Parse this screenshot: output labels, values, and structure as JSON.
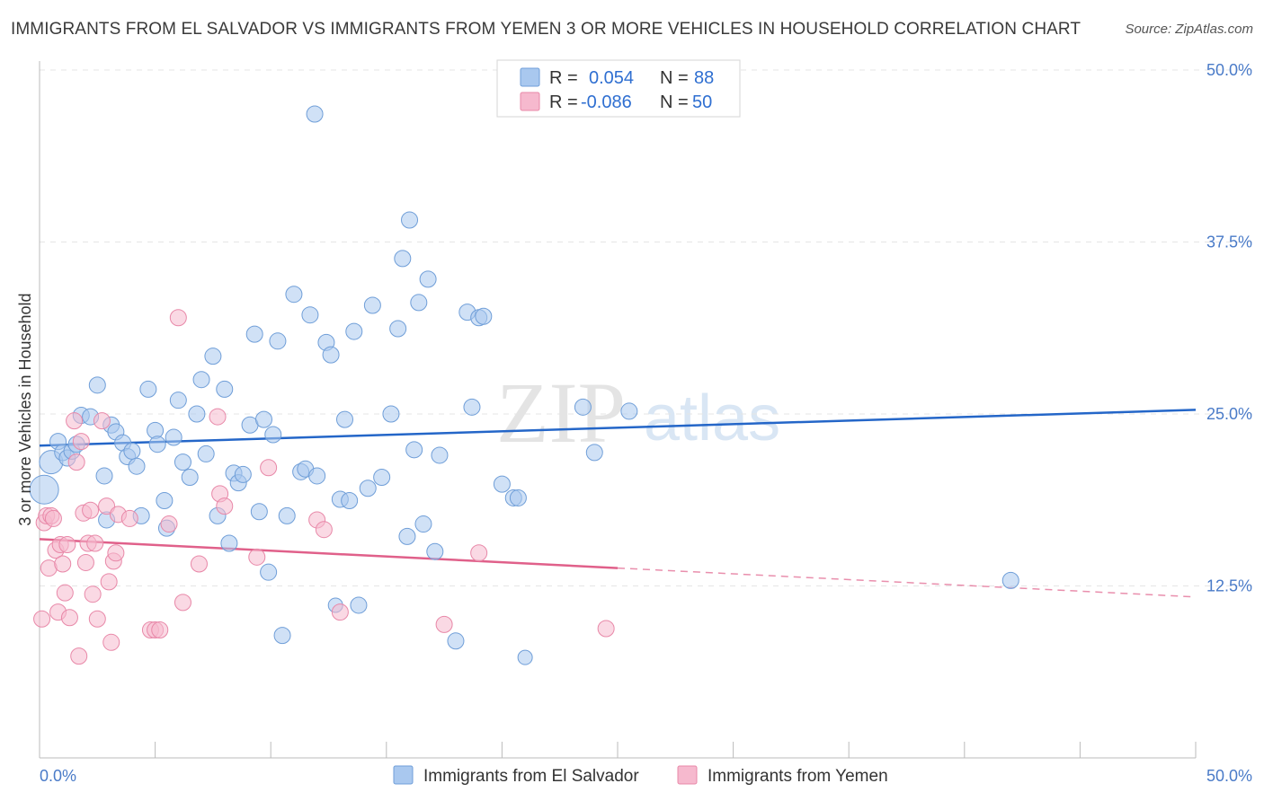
{
  "header": {
    "title": "IMMIGRANTS FROM EL SALVADOR VS IMMIGRANTS FROM YEMEN 3 OR MORE VEHICLES IN HOUSEHOLD CORRELATION CHART",
    "source": "Source: ZipAtlas.com"
  },
  "watermark": {
    "zip": "ZIP",
    "atlas": "atlas"
  },
  "colors": {
    "blue_fill": "#a9c8ef",
    "blue_stroke": "#6f9ed8",
    "blue_line": "#2466c8",
    "pink_fill": "#f6b9ce",
    "pink_stroke": "#e888a8",
    "pink_line": "#e0608a",
    "axis_label": "#4a7bc8",
    "grid": "#e5e5e5"
  },
  "legend": {
    "r_label": "R =",
    "n_label": "N =",
    "rows": [
      {
        "r": "0.054",
        "n": "88"
      },
      {
        "r": "-0.086",
        "n": "50"
      }
    ]
  },
  "chart_data": {
    "type": "scatter",
    "title": "IMMIGRANTS FROM EL SALVADOR VS IMMIGRANTS FROM YEMEN 3 OR MORE VEHICLES IN HOUSEHOLD CORRELATION CHART",
    "xlabel": "",
    "ylabel": "3 or more Vehicles in Household",
    "xlim": [
      0,
      50
    ],
    "ylim": [
      0,
      50
    ],
    "x_tick_labels": [
      "0.0%",
      "50.0%"
    ],
    "y_ticks": [
      12.5,
      25.0,
      37.5,
      50.0
    ],
    "y_tick_labels": [
      "12.5%",
      "25.0%",
      "37.5%",
      "50.0%"
    ],
    "grid": true,
    "legend_position": "top-center",
    "series": [
      {
        "name": "Immigrants from El Salvador",
        "color": "#a9c8ef",
        "r": 0.054,
        "n": 88,
        "trend": {
          "x": [
            0,
            50
          ],
          "y": [
            22.7,
            25.3
          ]
        },
        "points": [
          {
            "x": 0.2,
            "y": 19.5,
            "s": 3
          },
          {
            "x": 0.5,
            "y": 21.5,
            "s": 2
          },
          {
            "x": 0.8,
            "y": 23.0,
            "s": 1
          },
          {
            "x": 1.0,
            "y": 22.2,
            "s": 1
          },
          {
            "x": 1.2,
            "y": 21.8,
            "s": 1
          },
          {
            "x": 1.4,
            "y": 22.3,
            "s": 1
          },
          {
            "x": 1.6,
            "y": 22.8,
            "s": 1
          },
          {
            "x": 1.8,
            "y": 24.9,
            "s": 1
          },
          {
            "x": 2.2,
            "y": 24.8,
            "s": 1
          },
          {
            "x": 2.5,
            "y": 27.1,
            "s": 1
          },
          {
            "x": 2.8,
            "y": 20.5,
            "s": 1
          },
          {
            "x": 2.9,
            "y": 17.3,
            "s": 1
          },
          {
            "x": 3.1,
            "y": 24.2,
            "s": 1
          },
          {
            "x": 3.3,
            "y": 23.7,
            "s": 1
          },
          {
            "x": 3.6,
            "y": 22.9,
            "s": 1
          },
          {
            "x": 3.8,
            "y": 21.9,
            "s": 1
          },
          {
            "x": 4.0,
            "y": 22.3,
            "s": 1
          },
          {
            "x": 4.2,
            "y": 21.2,
            "s": 1
          },
          {
            "x": 4.4,
            "y": 17.6,
            "s": 1
          },
          {
            "x": 4.7,
            "y": 26.8,
            "s": 1
          },
          {
            "x": 5.0,
            "y": 23.8,
            "s": 1
          },
          {
            "x": 5.1,
            "y": 22.8,
            "s": 1
          },
          {
            "x": 5.4,
            "y": 18.7,
            "s": 1
          },
          {
            "x": 5.5,
            "y": 16.7,
            "s": 1
          },
          {
            "x": 5.8,
            "y": 23.3,
            "s": 1
          },
          {
            "x": 6.0,
            "y": 26.0,
            "s": 1
          },
          {
            "x": 6.2,
            "y": 21.5,
            "s": 1
          },
          {
            "x": 6.5,
            "y": 20.4,
            "s": 1
          },
          {
            "x": 6.8,
            "y": 25.0,
            "s": 1
          },
          {
            "x": 7.0,
            "y": 27.5,
            "s": 1
          },
          {
            "x": 7.2,
            "y": 22.1,
            "s": 1
          },
          {
            "x": 7.5,
            "y": 29.2,
            "s": 1
          },
          {
            "x": 7.7,
            "y": 17.6,
            "s": 1
          },
          {
            "x": 8.0,
            "y": 26.8,
            "s": 1
          },
          {
            "x": 8.2,
            "y": 15.6,
            "s": 1
          },
          {
            "x": 8.4,
            "y": 20.7,
            "s": 1
          },
          {
            "x": 8.6,
            "y": 20.0,
            "s": 1
          },
          {
            "x": 8.8,
            "y": 20.6,
            "s": 1
          },
          {
            "x": 9.1,
            "y": 24.2,
            "s": 1
          },
          {
            "x": 9.3,
            "y": 30.8,
            "s": 1
          },
          {
            "x": 9.5,
            "y": 17.9,
            "s": 1
          },
          {
            "x": 9.7,
            "y": 24.6,
            "s": 1
          },
          {
            "x": 9.9,
            "y": 13.5,
            "s": 1
          },
          {
            "x": 10.1,
            "y": 23.5,
            "s": 1
          },
          {
            "x": 10.3,
            "y": 30.3,
            "s": 1
          },
          {
            "x": 10.5,
            "y": 8.9,
            "s": 1
          },
          {
            "x": 10.7,
            "y": 17.6,
            "s": 1
          },
          {
            "x": 11.0,
            "y": 33.7,
            "s": 1
          },
          {
            "x": 11.3,
            "y": 20.8,
            "s": 1
          },
          {
            "x": 11.5,
            "y": 21.0,
            "s": 1
          },
          {
            "x": 11.7,
            "y": 32.2,
            "s": 1
          },
          {
            "x": 11.9,
            "y": 46.8,
            "s": 1
          },
          {
            "x": 12.0,
            "y": 20.5,
            "s": 1
          },
          {
            "x": 12.4,
            "y": 30.2,
            "s": 1
          },
          {
            "x": 12.6,
            "y": 29.3,
            "s": 1
          },
          {
            "x": 12.8,
            "y": 11.1,
            "s": 0
          },
          {
            "x": 13.0,
            "y": 18.8,
            "s": 1
          },
          {
            "x": 13.2,
            "y": 24.6,
            "s": 1
          },
          {
            "x": 13.4,
            "y": 18.7,
            "s": 1
          },
          {
            "x": 13.6,
            "y": 31.0,
            "s": 1
          },
          {
            "x": 13.8,
            "y": 11.1,
            "s": 1
          },
          {
            "x": 14.2,
            "y": 19.6,
            "s": 1
          },
          {
            "x": 14.4,
            "y": 32.9,
            "s": 1
          },
          {
            "x": 14.8,
            "y": 20.4,
            "s": 1
          },
          {
            "x": 15.2,
            "y": 25.0,
            "s": 1
          },
          {
            "x": 15.5,
            "y": 31.2,
            "s": 1
          },
          {
            "x": 15.7,
            "y": 36.3,
            "s": 1
          },
          {
            "x": 15.9,
            "y": 16.1,
            "s": 1
          },
          {
            "x": 16.0,
            "y": 39.1,
            "s": 1
          },
          {
            "x": 16.2,
            "y": 22.4,
            "s": 1
          },
          {
            "x": 16.4,
            "y": 33.1,
            "s": 1
          },
          {
            "x": 16.6,
            "y": 17.0,
            "s": 1
          },
          {
            "x": 16.8,
            "y": 34.8,
            "s": 1
          },
          {
            "x": 17.1,
            "y": 15.0,
            "s": 1
          },
          {
            "x": 17.3,
            "y": 22.0,
            "s": 1
          },
          {
            "x": 18.0,
            "y": 8.5,
            "s": 1
          },
          {
            "x": 18.5,
            "y": 32.4,
            "s": 1
          },
          {
            "x": 18.7,
            "y": 25.5,
            "s": 1
          },
          {
            "x": 19.0,
            "y": 32.0,
            "s": 1
          },
          {
            "x": 19.2,
            "y": 32.1,
            "s": 1
          },
          {
            "x": 20.0,
            "y": 19.9,
            "s": 1
          },
          {
            "x": 20.5,
            "y": 18.9,
            "s": 1
          },
          {
            "x": 20.7,
            "y": 18.9,
            "s": 1
          },
          {
            "x": 23.5,
            "y": 25.5,
            "s": 1
          },
          {
            "x": 24.0,
            "y": 22.2,
            "s": 1
          },
          {
            "x": 25.5,
            "y": 25.2,
            "s": 1
          },
          {
            "x": 42.0,
            "y": 12.9,
            "s": 1
          },
          {
            "x": 21.0,
            "y": 7.3,
            "s": 0
          }
        ]
      },
      {
        "name": "Immigrants from Yemen",
        "color": "#f6b9ce",
        "r": -0.086,
        "n": 50,
        "trend": {
          "x": [
            0,
            25
          ],
          "y": [
            15.9,
            13.8
          ]
        },
        "trend_dashed": {
          "x": [
            25,
            50
          ],
          "y": [
            13.8,
            11.7
          ]
        },
        "points": [
          {
            "x": 0.1,
            "y": 10.1,
            "s": 1
          },
          {
            "x": 0.2,
            "y": 17.1,
            "s": 1
          },
          {
            "x": 0.3,
            "y": 17.6,
            "s": 1
          },
          {
            "x": 0.4,
            "y": 13.8,
            "s": 1
          },
          {
            "x": 0.5,
            "y": 17.6,
            "s": 1
          },
          {
            "x": 0.6,
            "y": 17.4,
            "s": 1
          },
          {
            "x": 0.7,
            "y": 15.1,
            "s": 1
          },
          {
            "x": 0.8,
            "y": 10.6,
            "s": 1
          },
          {
            "x": 0.9,
            "y": 15.5,
            "s": 1
          },
          {
            "x": 1.0,
            "y": 14.1,
            "s": 1
          },
          {
            "x": 1.1,
            "y": 12.0,
            "s": 1
          },
          {
            "x": 1.2,
            "y": 15.5,
            "s": 1
          },
          {
            "x": 1.3,
            "y": 10.2,
            "s": 1
          },
          {
            "x": 1.5,
            "y": 24.5,
            "s": 1
          },
          {
            "x": 1.6,
            "y": 21.5,
            "s": 1
          },
          {
            "x": 1.8,
            "y": 23.0,
            "s": 1
          },
          {
            "x": 1.7,
            "y": 7.4,
            "s": 1
          },
          {
            "x": 1.9,
            "y": 17.8,
            "s": 1
          },
          {
            "x": 2.0,
            "y": 14.2,
            "s": 1
          },
          {
            "x": 2.1,
            "y": 15.6,
            "s": 1
          },
          {
            "x": 2.2,
            "y": 18.0,
            "s": 1
          },
          {
            "x": 2.3,
            "y": 11.9,
            "s": 1
          },
          {
            "x": 2.4,
            "y": 15.6,
            "s": 1
          },
          {
            "x": 2.5,
            "y": 10.1,
            "s": 1
          },
          {
            "x": 2.7,
            "y": 24.5,
            "s": 1
          },
          {
            "x": 2.9,
            "y": 18.3,
            "s": 1
          },
          {
            "x": 3.0,
            "y": 12.8,
            "s": 1
          },
          {
            "x": 3.1,
            "y": 8.4,
            "s": 1
          },
          {
            "x": 3.2,
            "y": 14.3,
            "s": 1
          },
          {
            "x": 3.3,
            "y": 14.9,
            "s": 1
          },
          {
            "x": 3.4,
            "y": 17.7,
            "s": 1
          },
          {
            "x": 3.9,
            "y": 17.4,
            "s": 1
          },
          {
            "x": 4.8,
            "y": 9.3,
            "s": 1
          },
          {
            "x": 5.0,
            "y": 9.3,
            "s": 1
          },
          {
            "x": 5.2,
            "y": 9.3,
            "s": 1
          },
          {
            "x": 5.6,
            "y": 17.0,
            "s": 1
          },
          {
            "x": 6.0,
            "y": 32.0,
            "s": 1
          },
          {
            "x": 6.2,
            "y": 11.3,
            "s": 1
          },
          {
            "x": 6.9,
            "y": 14.1,
            "s": 1
          },
          {
            "x": 7.7,
            "y": 24.8,
            "s": 1
          },
          {
            "x": 7.8,
            "y": 19.2,
            "s": 1
          },
          {
            "x": 8.0,
            "y": 18.3,
            "s": 1
          },
          {
            "x": 9.4,
            "y": 14.6,
            "s": 1
          },
          {
            "x": 9.9,
            "y": 21.1,
            "s": 1
          },
          {
            "x": 12.0,
            "y": 17.3,
            "s": 1
          },
          {
            "x": 12.3,
            "y": 16.6,
            "s": 1
          },
          {
            "x": 13.0,
            "y": 10.6,
            "s": 1
          },
          {
            "x": 17.5,
            "y": 9.7,
            "s": 1
          },
          {
            "x": 19.0,
            "y": 14.9,
            "s": 1
          },
          {
            "x": 24.5,
            "y": 9.4,
            "s": 1
          }
        ]
      }
    ]
  }
}
